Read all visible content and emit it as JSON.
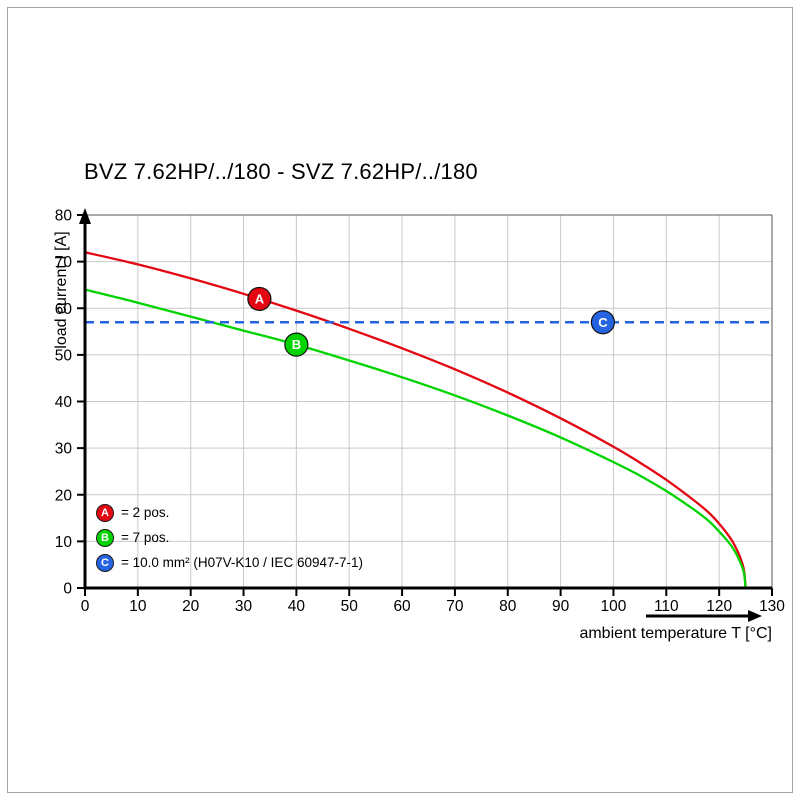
{
  "chart_data": {
    "type": "line",
    "title": "BVZ 7.62HP/../180 - SVZ 7.62HP/../180",
    "xlabel": "ambient temperature T [°C]",
    "ylabel": "load current I [A]",
    "xlim": [
      0,
      130
    ],
    "ylim": [
      0,
      80
    ],
    "x_ticks": [
      0,
      10,
      20,
      30,
      40,
      50,
      60,
      70,
      80,
      90,
      100,
      110,
      120,
      130
    ],
    "y_ticks": [
      0,
      10,
      20,
      30,
      40,
      50,
      60,
      70,
      80
    ],
    "grid": true,
    "legend_position": "bottom-left",
    "series": [
      {
        "name": "A",
        "legend_text": "= 2 pos.",
        "color": "#e30613",
        "style": "solid",
        "marker": {
          "letter": "A",
          "x": 33,
          "y": 62
        },
        "points": [
          [
            0,
            72
          ],
          [
            10,
            69.4
          ],
          [
            20,
            66.4
          ],
          [
            30,
            63.1
          ],
          [
            40,
            59.5
          ],
          [
            50,
            55.6
          ],
          [
            60,
            51.4
          ],
          [
            70,
            46.9
          ],
          [
            80,
            41.9
          ],
          [
            90,
            36.4
          ],
          [
            100,
            30.3
          ],
          [
            105,
            26.9
          ],
          [
            110,
            23.2
          ],
          [
            115,
            19.0
          ],
          [
            118,
            16.2
          ],
          [
            120,
            13.8
          ],
          [
            122,
            10.9
          ],
          [
            123,
            9.0
          ],
          [
            124,
            6.5
          ],
          [
            124.7,
            3.8
          ],
          [
            125,
            0
          ]
        ]
      },
      {
        "name": "B",
        "legend_text": "= 7 pos.",
        "color": "#00d400",
        "style": "solid",
        "marker": {
          "letter": "B",
          "x": 40,
          "y": 52.2
        },
        "points": [
          [
            0,
            64
          ],
          [
            10,
            61.2
          ],
          [
            20,
            58.2
          ],
          [
            30,
            55.2
          ],
          [
            40,
            52.2
          ],
          [
            50,
            48.8
          ],
          [
            60,
            45.2
          ],
          [
            70,
            41.3
          ],
          [
            80,
            37.0
          ],
          [
            90,
            32.3
          ],
          [
            100,
            27.0
          ],
          [
            105,
            24.1
          ],
          [
            110,
            20.8
          ],
          [
            115,
            17.0
          ],
          [
            118,
            14.4
          ],
          [
            120,
            12.1
          ],
          [
            122,
            9.5
          ],
          [
            123,
            7.8
          ],
          [
            124,
            5.5
          ],
          [
            124.7,
            3.2
          ],
          [
            125,
            0
          ]
        ]
      },
      {
        "name": "C",
        "legend_text": "= 10.0 mm² (H07V-K10 / IEC 60947-7-1)",
        "color": "#2563e0",
        "style": "dashed",
        "marker": {
          "letter": "C",
          "x": 98,
          "y": 57
        },
        "points": [
          [
            0,
            57
          ],
          [
            130,
            57
          ]
        ]
      }
    ]
  }
}
